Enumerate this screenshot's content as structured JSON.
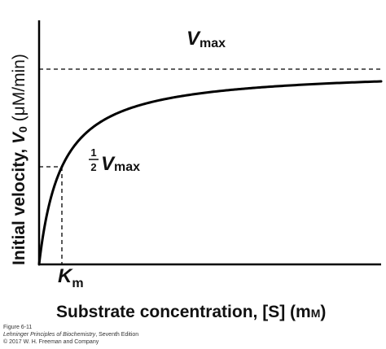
{
  "chart_data": {
    "type": "line",
    "model": "michaelis-menten",
    "series": [
      {
        "x": [
          0,
          0.25,
          0.5,
          0.75,
          1,
          1.5,
          2,
          3,
          4,
          5,
          6,
          7,
          8,
          9,
          10,
          11,
          12,
          13,
          14,
          15
        ],
        "y": [
          0,
          0.2,
          0.333,
          0.429,
          0.5,
          0.6,
          0.667,
          0.75,
          0.8,
          0.833,
          0.857,
          0.875,
          0.889,
          0.9,
          0.909,
          0.917,
          0.923,
          0.929,
          0.933,
          0.938
        ]
      }
    ],
    "vmax": 1,
    "km": 1,
    "xlim": [
      0,
      15
    ],
    "ylim": [
      0,
      1.25
    ],
    "ylabel": {
      "main": "Initial velocity, ",
      "var": "V",
      "sub": "0",
      "units": " (μM/min)"
    },
    "xlabel": {
      "main": "Substrate concentration, [S] (m",
      "smallcap": "M",
      "close": ")"
    },
    "annotations": {
      "vmax": {
        "var": "V",
        "sub": "max"
      },
      "half_vmax": {
        "num": "1",
        "den": "2",
        "var": "V",
        "sub": "max"
      },
      "km": {
        "var": "K",
        "sub": "m"
      }
    },
    "grid": false,
    "legend": "none"
  },
  "caption": {
    "line1": "Figure 6-11",
    "line2_italic": "Lehninger Principles of Biochemistry",
    "line2_rest": ", Seventh Edition",
    "line3": "© 2017 W. H. Freeman and Company"
  },
  "colors": {
    "line": "#000000",
    "text": "#111111"
  }
}
